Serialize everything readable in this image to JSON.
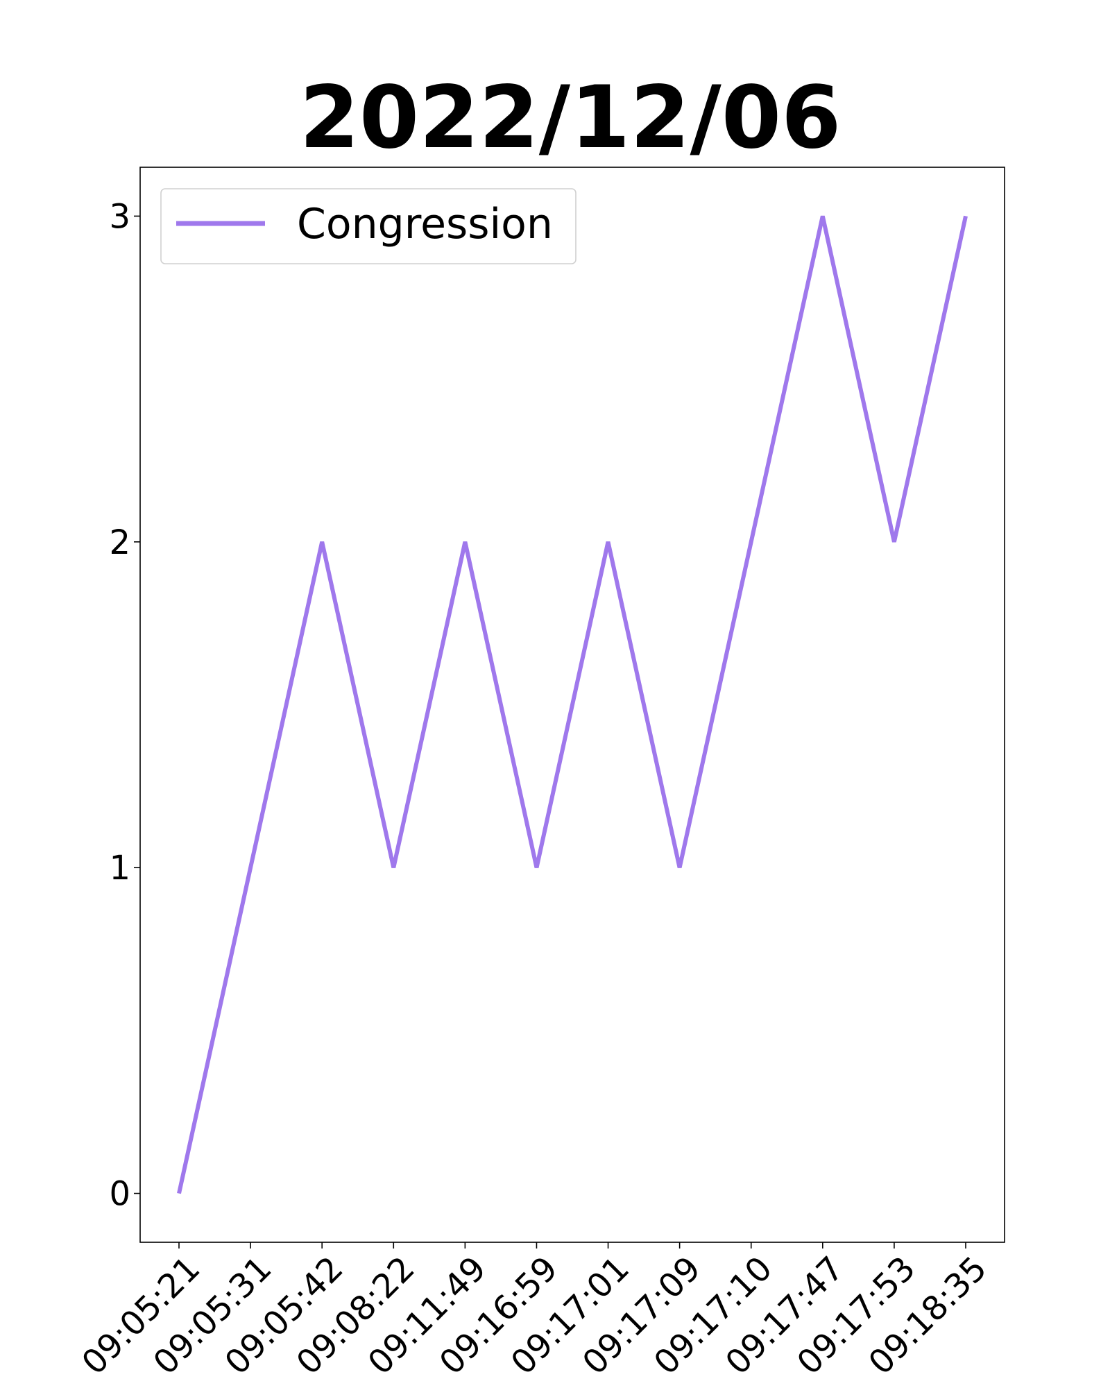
{
  "chart_data": {
    "type": "line",
    "title": "2022/12/06",
    "xlabel": "",
    "ylabel": "",
    "categories": [
      "09:05:21",
      "09:05:31",
      "09:05:42",
      "09:08:22",
      "09:11:49",
      "09:16:59",
      "09:17:01",
      "09:17:09",
      "09:17:10",
      "09:17:47",
      "09:17:53",
      "09:18:35"
    ],
    "series": [
      {
        "name": "Congression",
        "color": "#9f78ec",
        "values": [
          0,
          1,
          2,
          1,
          2,
          1,
          2,
          1,
          2,
          3,
          2,
          3
        ]
      }
    ],
    "yticks": [
      0,
      1,
      2,
      3
    ],
    "ylim": [
      -0.15,
      3.15
    ],
    "grid": false,
    "legend": "top-left"
  }
}
